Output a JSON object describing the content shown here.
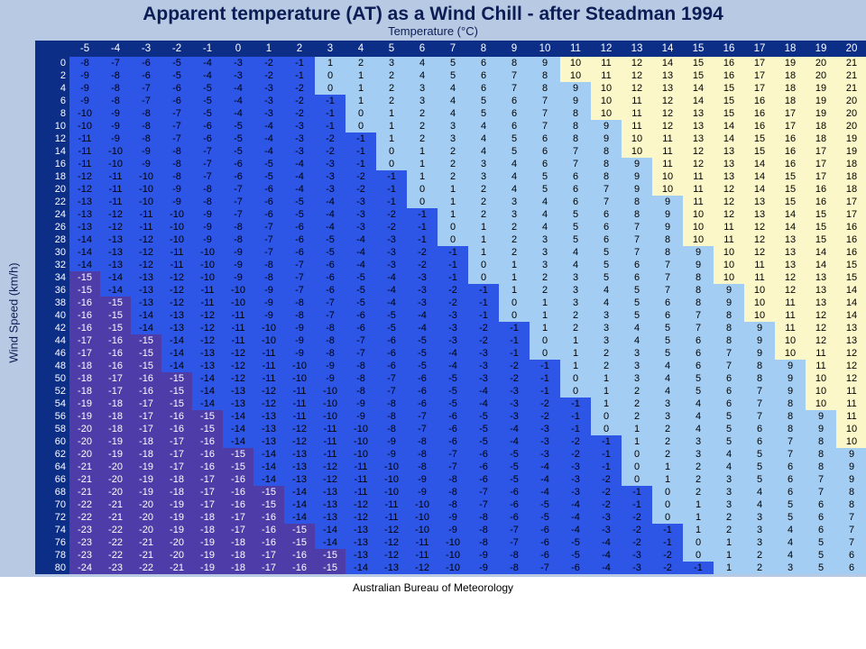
{
  "caption": "Australian Bureau of Meteorology",
  "colors": {
    "slide_background": "#b7c9e3",
    "header_background": "#0d2e86",
    "header_text": "#ffffff",
    "very_cold": "#4e3da8",
    "negative": "#2e56e6",
    "low_positive": "#a3cdf2",
    "high_positive": "#fbf7c8",
    "text_on_dark": "#ffffff",
    "text_on_light": "#000000"
  },
  "chart_data": {
    "type": "table",
    "title": "Apparent temperature (AT) as a Wind Chill - after Steadman 1994",
    "xlabel": "Temperature (°C)",
    "ylabel": "Wind Speed (km/h)",
    "column_values": [
      -5,
      -4,
      -3,
      -2,
      -1,
      0,
      1,
      2,
      3,
      4,
      5,
      6,
      7,
      8,
      9,
      10,
      11,
      12,
      13,
      14,
      15,
      16,
      17,
      18,
      19,
      20
    ],
    "row_values": [
      0,
      2,
      4,
      6,
      8,
      10,
      12,
      14,
      16,
      18,
      20,
      22,
      24,
      26,
      28,
      30,
      32,
      34,
      36,
      38,
      40,
      42,
      44,
      46,
      48,
      50,
      52,
      54,
      56,
      58,
      60,
      62,
      64,
      66,
      68,
      70,
      72,
      74,
      76,
      78,
      80
    ],
    "cells": [
      [
        -8,
        -7,
        -6,
        -5,
        -4,
        -3,
        -2,
        -1,
        1,
        2,
        3,
        4,
        5,
        6,
        8,
        9,
        10,
        11,
        12,
        14,
        15,
        16,
        17,
        19,
        20,
        21
      ],
      [
        -9,
        -8,
        -6,
        -5,
        -4,
        -3,
        -2,
        -1,
        0,
        1,
        2,
        4,
        5,
        6,
        7,
        8,
        10,
        11,
        12,
        13,
        15,
        16,
        17,
        18,
        20,
        21
      ],
      [
        -9,
        -8,
        -7,
        -6,
        -5,
        -4,
        -3,
        -2,
        0,
        1,
        2,
        3,
        4,
        6,
        7,
        8,
        9,
        10,
        12,
        13,
        14,
        15,
        17,
        18,
        19,
        21
      ],
      [
        -9,
        -8,
        -7,
        -6,
        -5,
        -4,
        -3,
        -2,
        -1,
        1,
        2,
        3,
        4,
        5,
        6,
        7,
        9,
        10,
        11,
        12,
        14,
        15,
        16,
        18,
        19,
        20
      ],
      [
        -10,
        -9,
        -8,
        -7,
        -5,
        -4,
        -3,
        -2,
        -1,
        0,
        1,
        2,
        4,
        5,
        6,
        7,
        8,
        10,
        11,
        12,
        13,
        15,
        16,
        17,
        19,
        20
      ],
      [
        -10,
        -9,
        -8,
        -7,
        -6,
        -5,
        -4,
        -3,
        -1,
        0,
        1,
        2,
        3,
        4,
        6,
        7,
        8,
        9,
        11,
        12,
        13,
        14,
        16,
        17,
        18,
        20
      ],
      [
        -11,
        -9,
        -8,
        -7,
        -6,
        -5,
        -4,
        -3,
        -2,
        -1,
        1,
        2,
        3,
        4,
        5,
        6,
        8,
        9,
        10,
        11,
        13,
        14,
        15,
        16,
        18,
        19
      ],
      [
        -11,
        -10,
        -9,
        -8,
        -7,
        -5,
        -4,
        -3,
        -2,
        -1,
        0,
        1,
        2,
        4,
        5,
        6,
        7,
        8,
        10,
        11,
        12,
        13,
        15,
        16,
        17,
        19
      ],
      [
        -11,
        -10,
        -9,
        -8,
        -7,
        -6,
        -5,
        -4,
        -3,
        -1,
        0,
        1,
        2,
        3,
        4,
        6,
        7,
        8,
        9,
        11,
        12,
        13,
        14,
        16,
        17,
        18
      ],
      [
        -12,
        -11,
        -10,
        -8,
        -7,
        -6,
        -5,
        -4,
        -3,
        -2,
        -1,
        1,
        2,
        3,
        4,
        5,
        6,
        8,
        9,
        10,
        11,
        13,
        14,
        15,
        17,
        18
      ],
      [
        -12,
        -11,
        -10,
        -9,
        -8,
        -7,
        -6,
        -4,
        -3,
        -2,
        -1,
        0,
        1,
        2,
        4,
        5,
        6,
        7,
        9,
        10,
        11,
        12,
        14,
        15,
        16,
        18
      ],
      [
        -13,
        -11,
        -10,
        -9,
        -8,
        -7,
        -6,
        -5,
        -4,
        -3,
        -1,
        0,
        1,
        2,
        3,
        4,
        6,
        7,
        8,
        9,
        11,
        12,
        13,
        15,
        16,
        17
      ],
      [
        -13,
        -12,
        -11,
        -10,
        -9,
        -7,
        -6,
        -5,
        -4,
        -3,
        -2,
        -1,
        1,
        2,
        3,
        4,
        5,
        6,
        8,
        9,
        10,
        12,
        13,
        14,
        15,
        17
      ],
      [
        -13,
        -12,
        -11,
        -10,
        -9,
        -8,
        -7,
        -6,
        -4,
        -3,
        -2,
        -1,
        0,
        1,
        2,
        4,
        5,
        6,
        7,
        9,
        10,
        11,
        12,
        14,
        15,
        16
      ],
      [
        -14,
        -13,
        -12,
        -10,
        -9,
        -8,
        -7,
        -6,
        -5,
        -4,
        -3,
        -1,
        0,
        1,
        2,
        3,
        5,
        6,
        7,
        8,
        10,
        11,
        12,
        13,
        15,
        16
      ],
      [
        -14,
        -13,
        -12,
        -11,
        -10,
        -9,
        -7,
        -6,
        -5,
        -4,
        -3,
        -2,
        -1,
        1,
        2,
        3,
        4,
        5,
        7,
        8,
        9,
        10,
        12,
        13,
        14,
        16
      ],
      [
        -14,
        -13,
        -12,
        -11,
        -10,
        -9,
        -8,
        -7,
        -6,
        -4,
        -3,
        -2,
        -1,
        0,
        1,
        3,
        4,
        5,
        6,
        7,
        9,
        10,
        11,
        13,
        14,
        15
      ],
      [
        -15,
        -14,
        -13,
        -12,
        -10,
        -9,
        -8,
        -7,
        -6,
        -5,
        -4,
        -3,
        -1,
        0,
        1,
        2,
        3,
        5,
        6,
        7,
        8,
        10,
        11,
        12,
        13,
        15
      ],
      [
        -15,
        -14,
        -13,
        -12,
        -11,
        -10,
        -9,
        -7,
        -6,
        -5,
        -4,
        -3,
        -2,
        -1,
        1,
        2,
        3,
        4,
        5,
        7,
        8,
        9,
        10,
        12,
        13,
        14
      ],
      [
        -16,
        -15,
        -13,
        -12,
        -11,
        -10,
        -9,
        -8,
        -7,
        -5,
        -4,
        -3,
        -2,
        -1,
        0,
        1,
        3,
        4,
        5,
        6,
        8,
        9,
        10,
        11,
        13,
        14
      ],
      [
        -16,
        -15,
        -14,
        -13,
        -12,
        -11,
        -9,
        -8,
        -7,
        -6,
        -5,
        -4,
        -3,
        -1,
        0,
        1,
        2,
        3,
        5,
        6,
        7,
        8,
        10,
        11,
        12,
        14
      ],
      [
        -16,
        -15,
        -14,
        -13,
        -12,
        -11,
        -10,
        -9,
        -8,
        -6,
        -5,
        -4,
        -3,
        -2,
        -1,
        1,
        2,
        3,
        4,
        5,
        7,
        8,
        9,
        11,
        12,
        13
      ],
      [
        -17,
        -16,
        -15,
        -14,
        -12,
        -11,
        -10,
        -9,
        -8,
        -7,
        -6,
        -5,
        -3,
        -2,
        -1,
        0,
        1,
        3,
        4,
        5,
        6,
        8,
        9,
        10,
        12,
        13
      ],
      [
        -17,
        -16,
        -15,
        -14,
        -13,
        -12,
        -11,
        -9,
        -8,
        -7,
        -6,
        -5,
        -4,
        -3,
        -1,
        0,
        1,
        2,
        3,
        5,
        6,
        7,
        9,
        10,
        11,
        12
      ],
      [
        -18,
        -16,
        -15,
        -14,
        -13,
        -12,
        -11,
        -10,
        -9,
        -8,
        -6,
        -5,
        -4,
        -3,
        -2,
        -1,
        1,
        2,
        3,
        4,
        6,
        7,
        8,
        9,
        11,
        12
      ],
      [
        -18,
        -17,
        -16,
        -15,
        -14,
        -12,
        -11,
        -10,
        -9,
        -8,
        -7,
        -6,
        -5,
        -3,
        -2,
        -1,
        0,
        1,
        3,
        4,
        5,
        6,
        8,
        9,
        10,
        12
      ],
      [
        -18,
        -17,
        -16,
        -15,
        -14,
        -13,
        -12,
        -11,
        -10,
        -8,
        -7,
        -6,
        -5,
        -4,
        -3,
        -1,
        0,
        1,
        2,
        4,
        5,
        6,
        7,
        9,
        10,
        11
      ],
      [
        -19,
        -18,
        -17,
        -15,
        -14,
        -13,
        -12,
        -11,
        -10,
        -9,
        -8,
        -6,
        -5,
        -4,
        -3,
        -2,
        -1,
        1,
        2,
        3,
        4,
        6,
        7,
        8,
        10,
        11
      ],
      [
        -19,
        -18,
        -17,
        -16,
        -15,
        -14,
        -13,
        -11,
        -10,
        -9,
        -8,
        -7,
        -6,
        -5,
        -3,
        -2,
        -1,
        0,
        2,
        3,
        4,
        5,
        7,
        8,
        9,
        11
      ],
      [
        -20,
        -18,
        -17,
        -16,
        -15,
        -14,
        -13,
        -12,
        -11,
        -10,
        -8,
        -7,
        -6,
        -5,
        -4,
        -3,
        -1,
        0,
        1,
        2,
        4,
        5,
        6,
        8,
        9,
        10
      ],
      [
        -20,
        -19,
        -18,
        -17,
        -16,
        -14,
        -13,
        -12,
        -11,
        -10,
        -9,
        -8,
        -6,
        -5,
        -4,
        -3,
        -2,
        -1,
        1,
        2,
        3,
        5,
        6,
        7,
        8,
        10
      ],
      [
        -20,
        -19,
        -18,
        -17,
        -16,
        -15,
        -14,
        -13,
        -11,
        -10,
        -9,
        -8,
        -7,
        -6,
        -5,
        -3,
        -2,
        -1,
        0,
        2,
        3,
        4,
        5,
        7,
        8,
        9
      ],
      [
        -21,
        -20,
        -19,
        -17,
        -16,
        -15,
        -14,
        -13,
        -12,
        -11,
        -10,
        -8,
        -7,
        -6,
        -5,
        -4,
        -3,
        -1,
        0,
        1,
        2,
        4,
        5,
        6,
        8,
        9
      ],
      [
        -21,
        -20,
        -19,
        -18,
        -17,
        -16,
        -14,
        -13,
        -12,
        -11,
        -10,
        -9,
        -8,
        -6,
        -5,
        -4,
        -3,
        -2,
        0,
        1,
        2,
        3,
        5,
        6,
        7,
        9
      ],
      [
        -21,
        -20,
        -19,
        -18,
        -17,
        -16,
        -15,
        -14,
        -13,
        -11,
        -10,
        -9,
        -8,
        -7,
        -6,
        -4,
        -3,
        -2,
        -1,
        0,
        2,
        3,
        4,
        6,
        7,
        8
      ],
      [
        -22,
        -21,
        -20,
        -19,
        -17,
        -16,
        -15,
        -14,
        -13,
        -12,
        -11,
        -10,
        -8,
        -7,
        -6,
        -5,
        -4,
        -2,
        -1,
        0,
        1,
        3,
        4,
        5,
        6,
        8
      ],
      [
        -22,
        -21,
        -20,
        -19,
        -18,
        -17,
        -16,
        -14,
        -13,
        -12,
        -11,
        -10,
        -9,
        -8,
        -6,
        -5,
        -4,
        -3,
        -2,
        0,
        1,
        2,
        3,
        5,
        6,
        7
      ],
      [
        -23,
        -22,
        -20,
        -19,
        -18,
        -17,
        -16,
        -15,
        -14,
        -13,
        -12,
        -10,
        -9,
        -8,
        -7,
        -6,
        -4,
        -3,
        -2,
        -1,
        1,
        2,
        3,
        4,
        6,
        7
      ],
      [
        -23,
        -22,
        -21,
        -20,
        -19,
        -18,
        -16,
        -15,
        -14,
        -13,
        -12,
        -11,
        -10,
        -8,
        -7,
        -6,
        -5,
        -4,
        -2,
        -1,
        0,
        1,
        3,
        4,
        5,
        7
      ],
      [
        -23,
        -22,
        -21,
        -20,
        -19,
        -18,
        -17,
        -16,
        -15,
        -13,
        -12,
        -11,
        -10,
        -9,
        -8,
        -6,
        -5,
        -4,
        -3,
        -2,
        0,
        1,
        2,
        4,
        5,
        6
      ],
      [
        -24,
        -23,
        -22,
        -21,
        -19,
        -18,
        -17,
        -16,
        -15,
        -14,
        -13,
        -12,
        -10,
        -9,
        -8,
        -7,
        -6,
        -4,
        -3,
        -2,
        -1,
        1,
        2,
        3,
        5,
        6
      ]
    ]
  }
}
